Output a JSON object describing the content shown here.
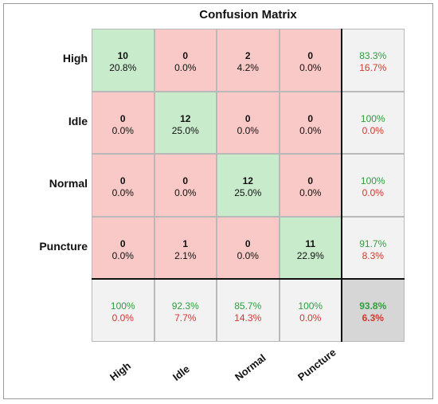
{
  "chart_data": {
    "type": "heatmap",
    "title": "Confusion Matrix",
    "row_labels": [
      "High",
      "Idle",
      "Normal",
      "Puncture"
    ],
    "col_labels": [
      "High",
      "Idle",
      "Normal",
      "Puncture"
    ],
    "cells": [
      [
        {
          "count": "10",
          "pct": "20.8%"
        },
        {
          "count": "0",
          "pct": "0.0%"
        },
        {
          "count": "2",
          "pct": "4.2%"
        },
        {
          "count": "0",
          "pct": "0.0%"
        }
      ],
      [
        {
          "count": "0",
          "pct": "0.0%"
        },
        {
          "count": "12",
          "pct": "25.0%"
        },
        {
          "count": "0",
          "pct": "0.0%"
        },
        {
          "count": "0",
          "pct": "0.0%"
        }
      ],
      [
        {
          "count": "0",
          "pct": "0.0%"
        },
        {
          "count": "0",
          "pct": "0.0%"
        },
        {
          "count": "12",
          "pct": "25.0%"
        },
        {
          "count": "0",
          "pct": "0.0%"
        }
      ],
      [
        {
          "count": "0",
          "pct": "0.0%"
        },
        {
          "count": "1",
          "pct": "2.1%"
        },
        {
          "count": "0",
          "pct": "0.0%"
        },
        {
          "count": "11",
          "pct": "22.9%"
        }
      ]
    ],
    "row_summary": [
      {
        "correct": "83.3%",
        "wrong": "16.7%"
      },
      {
        "correct": "100%",
        "wrong": "0.0%"
      },
      {
        "correct": "100%",
        "wrong": "0.0%"
      },
      {
        "correct": "91.7%",
        "wrong": "8.3%"
      }
    ],
    "col_summary": [
      {
        "correct": "100%",
        "wrong": "0.0%"
      },
      {
        "correct": "92.3%",
        "wrong": "7.7%"
      },
      {
        "correct": "85.7%",
        "wrong": "14.3%"
      },
      {
        "correct": "100%",
        "wrong": "0.0%"
      }
    ],
    "overall": {
      "correct": "93.8%",
      "wrong": "6.3%"
    },
    "colors": {
      "correct_fill": "#c8ebcc",
      "error_fill": "#f8c9c6",
      "summary_fill": "#f2f2f2",
      "overall_fill": "#d6d6d6",
      "correct_text": "#2f9e3e",
      "wrong_text": "#d1392f"
    }
  }
}
